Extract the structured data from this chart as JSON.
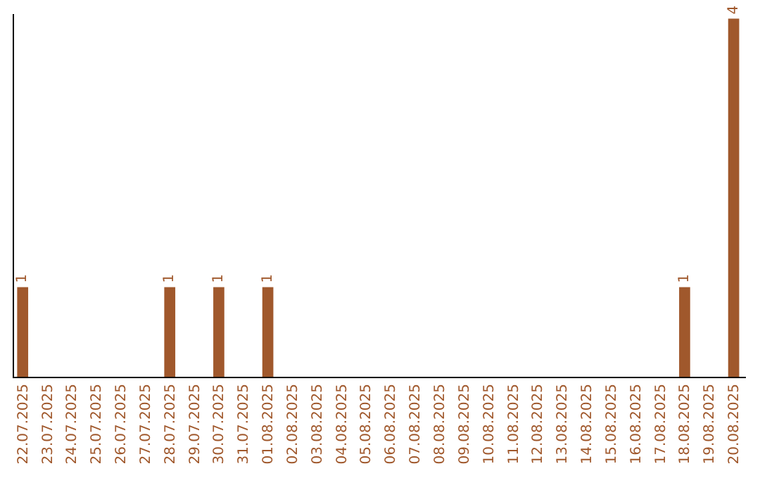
{
  "chart_data": {
    "type": "bar",
    "categories": [
      "22.07.2025",
      "23.07.2025",
      "24.07.2025",
      "25.07.2025",
      "26.07.2025",
      "27.07.2025",
      "28.07.2025",
      "29.07.2025",
      "30.07.2025",
      "31.07.2025",
      "01.08.2025",
      "02.08.2025",
      "03.08.2025",
      "04.08.2025",
      "05.08.2025",
      "06.08.2025",
      "07.08.2025",
      "08.08.2025",
      "09.08.2025",
      "10.08.2025",
      "11.08.2025",
      "12.08.2025",
      "13.08.2025",
      "14.08.2025",
      "15.08.2025",
      "16.08.2025",
      "17.08.2025",
      "18.08.2025",
      "19.08.2025",
      "20.08.2025"
    ],
    "values": [
      1,
      0,
      0,
      0,
      0,
      0,
      1,
      0,
      1,
      0,
      1,
      0,
      0,
      0,
      0,
      0,
      0,
      0,
      0,
      0,
      0,
      0,
      0,
      0,
      0,
      0,
      0,
      1,
      0,
      4
    ],
    "value_labels": [
      "1",
      null,
      null,
      null,
      null,
      null,
      "1",
      null,
      "1",
      null,
      "1",
      null,
      null,
      null,
      null,
      null,
      null,
      null,
      null,
      null,
      null,
      null,
      null,
      null,
      null,
      null,
      null,
      "1",
      null,
      "4"
    ],
    "color": "#a0582c",
    "ylim": [
      0,
      4.05
    ],
    "tick_labels": "x"
  }
}
